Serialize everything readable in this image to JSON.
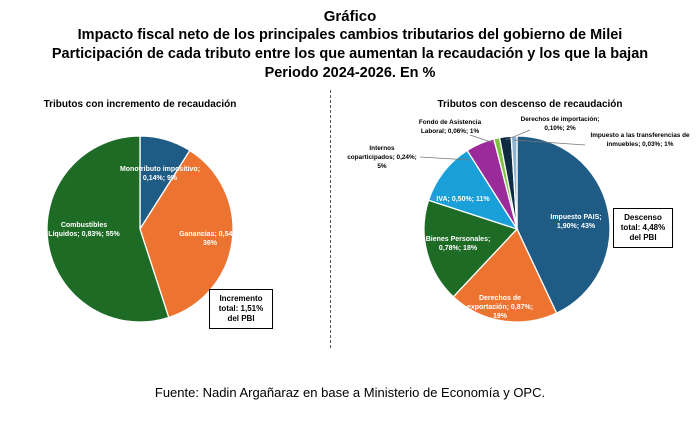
{
  "header": {
    "line0": "Gráfico",
    "line1": "Impacto fiscal neto de los principales cambios tributarios del gobierno de Milei",
    "line2": "Participación de cada tributo entre los que aumentan la recaudación y los que la bajan",
    "line3": "Periodo 2024-2026. En %"
  },
  "boxes": {
    "left": [
      "Incremento",
      "total: 1,51%",
      "del PBI"
    ],
    "right": [
      "Descenso",
      "total: 4,48%",
      "del PBI"
    ]
  },
  "source": "Fuente: Nadin Argañaraz en base a Ministerio de Economía y OPC.",
  "chart_data": [
    {
      "type": "pie",
      "title": "Tributos con incremento de recaudación",
      "slices": [
        {
          "name": "Monotributo impositivo",
          "percent": 9,
          "value_pbi": 0.14,
          "color": "#1f5c85",
          "label": [
            "Monotributo impositivo;",
            "0,14%; 9%"
          ]
        },
        {
          "name": "Ganancias",
          "percent": 36,
          "value_pbi": 0.54,
          "color": "#ed7430",
          "label": [
            "Ganancias; 0,54%;",
            "36%"
          ]
        },
        {
          "name": "Combustibles Líquidos",
          "percent": 55,
          "value_pbi": 0.83,
          "color": "#1e6b26",
          "label": [
            "Combustibles",
            "Líquidos; 0,83%; 55%"
          ]
        }
      ]
    },
    {
      "type": "pie",
      "title": "Tributos con descenso de recaudación",
      "slices": [
        {
          "name": "Impuesto PAIS",
          "percent": 43,
          "value_pbi": 1.9,
          "color": "#1f5c85",
          "label": [
            "Impuesto PAIS;",
            "1,90%; 43%"
          ]
        },
        {
          "name": "Derechos de exportación",
          "percent": 19,
          "value_pbi": 0.87,
          "color": "#ed7430",
          "label": [
            "Derechos de",
            "exportación; 0,87%;",
            "19%"
          ]
        },
        {
          "name": "Bienes Personales",
          "percent": 18,
          "value_pbi": 0.78,
          "color": "#1e6b26",
          "label": [
            "Bienes Personales;",
            "0,78%; 18%"
          ]
        },
        {
          "name": "IVA",
          "percent": 11,
          "value_pbi": 0.5,
          "color": "#1aa0d8",
          "label": [
            "IVA; 0,50%; 11%"
          ]
        },
        {
          "name": "Internos coparticipados",
          "percent": 5,
          "value_pbi": 0.24,
          "color": "#9b2b9b",
          "label": [
            "Internos",
            "coparticipados; 0,24%;",
            "5%"
          ]
        },
        {
          "name": "Fondo de Asistencia Laboral",
          "percent": 1,
          "value_pbi": 0.06,
          "color": "#7fc241",
          "label": [
            "Fondo de Asistencia",
            "Laboral; 0,06%; 1%"
          ]
        },
        {
          "name": "Derechos de importación",
          "percent": 2,
          "value_pbi": 0.1,
          "color": "#0d2c44",
          "label": [
            "Derechos de importación;",
            "0,10%; 2%"
          ]
        },
        {
          "name": "Impuesto a las transferencias de inmuebles",
          "percent": 1,
          "value_pbi": 0.03,
          "color": "#8fb4d0",
          "label": [
            "Impuesto a las transferencias de",
            "inmuebles; 0,03%; 1%"
          ]
        }
      ]
    }
  ]
}
